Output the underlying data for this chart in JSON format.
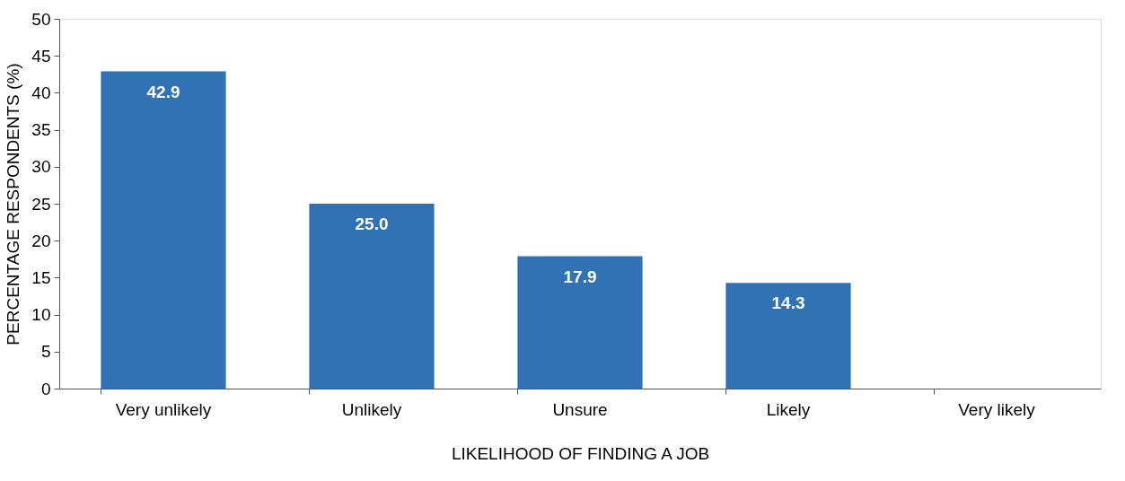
{
  "chart_data": {
    "type": "bar",
    "xlabel": "LIKELIHOOD OF  FINDING A JOB",
    "ylabel": "PERCENTAGE RESPONDENTS (%)",
    "categories": [
      "Very unlikely",
      "Unlikely",
      "Unsure",
      "Likely",
      "Very likely"
    ],
    "values": [
      42.9,
      25.0,
      17.9,
      14.3,
      0
    ],
    "value_labels": [
      "42.9",
      "25.0",
      "17.9",
      "14.3",
      null
    ],
    "color": "#3172b5",
    "ylim": [
      0,
      50
    ],
    "yticks": [
      0,
      5,
      10,
      15,
      20,
      25,
      30,
      35,
      40,
      45,
      50
    ],
    "grid": false
  }
}
